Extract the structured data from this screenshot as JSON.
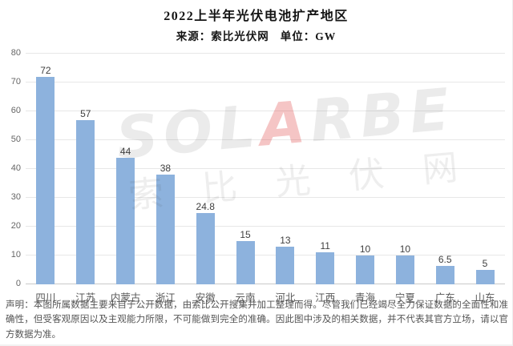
{
  "header": {
    "title": "2022上半年光伏电池扩产地区",
    "source": "来源：索比光伏网",
    "unit": "单位：GW"
  },
  "chart_data": {
    "type": "bar",
    "title": "2022上半年光伏电池扩产地区",
    "subtitle": "来源：索比光伏网 单位：GW",
    "categories": [
      "四川",
      "江苏",
      "内蒙古",
      "浙江",
      "安徽",
      "云南",
      "河北",
      "江西",
      "青海",
      "宁夏",
      "广东",
      "山东"
    ],
    "values": [
      72,
      57,
      44,
      38,
      24.8,
      15,
      13,
      11,
      10,
      10,
      6.5,
      5
    ],
    "xlabel": "",
    "ylabel": "",
    "unit": "GW",
    "ylim": [
      0,
      80
    ],
    "yticks": [
      0,
      10,
      20,
      30,
      40,
      50,
      60,
      70,
      80
    ],
    "grid": true,
    "legend": false,
    "bar_color": "#8DB2DD",
    "gridline_color": "#E7E7E7",
    "axis_label_color": "#595959"
  },
  "watermark": {
    "brand_parts": [
      "SOL",
      "A",
      "RBE"
    ],
    "accent_color": "#DE3E3E",
    "cjk": "索比光伏网"
  },
  "disclaimer": {
    "text": "声明：本图所属数据主要来自于公开数据，由索比公开搜集并加工整理而得。尽管我们已经竭尽全力保证数据的全面性和准确性，但受客观原因以及主观能力所限，不可能做到完全的准确。因此图中涉及的相关数据，并不代表其官方立场，请以官方数据为准。"
  }
}
